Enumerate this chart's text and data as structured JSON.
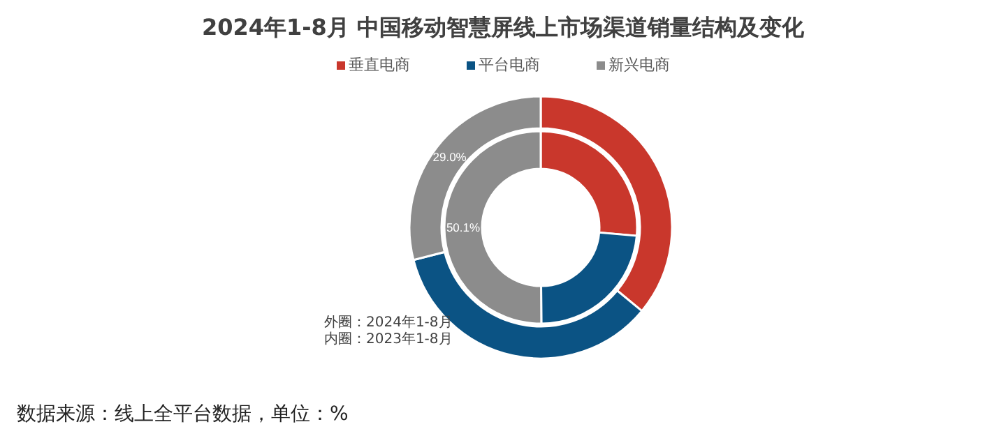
{
  "chart_data": {
    "type": "donut",
    "title": "2024年1-8月 中国移动智慧屏线上市场渠道销量结构及变化",
    "categories": [
      "垂直电商",
      "平台电商",
      "新兴电商"
    ],
    "colors": [
      "#c9372c",
      "#0b5384",
      "#8c8c8c"
    ],
    "series": [
      {
        "values": [
          36.0,
          35.0,
          29.0
        ],
        "value_labels": [
          null,
          null,
          "29.0%"
        ]
      },
      {
        "values": [
          26.4,
          23.5,
          50.1
        ],
        "value_labels": [
          null,
          null,
          "50.1%"
        ]
      }
    ],
    "legend": "top",
    "annotations": [
      "外圈：2024年1-8月",
      "内圈：2023年1-8月",
      "数据来源：线上全平台数据，单位：%"
    ]
  }
}
